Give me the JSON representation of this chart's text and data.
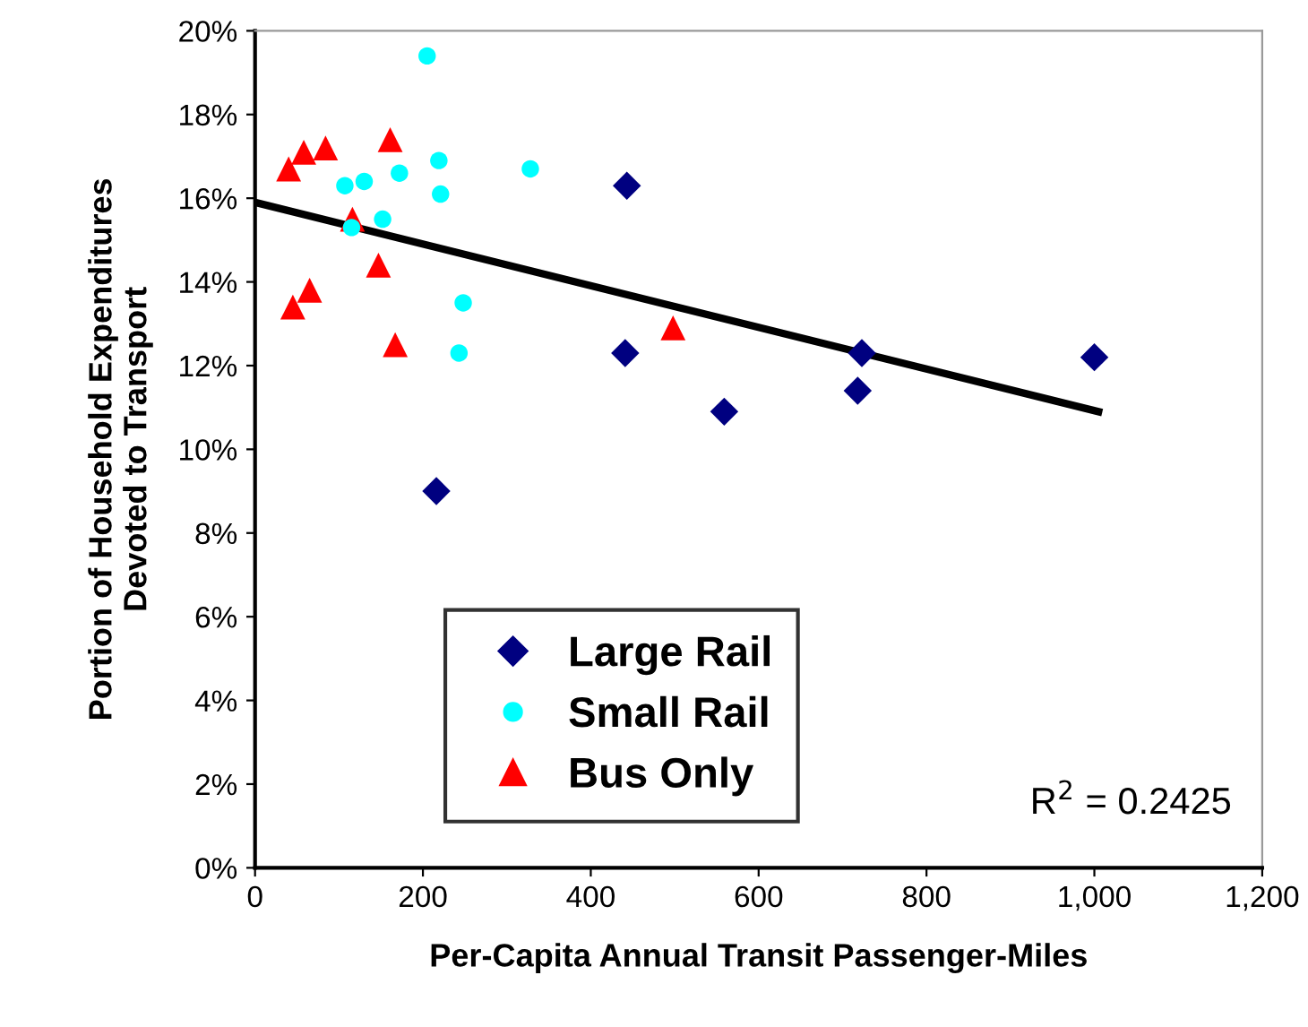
{
  "chart_data": {
    "type": "scatter",
    "xlabel": "Per-Capita Annual Transit Passenger-Miles",
    "ylabel": "Portion of Household Expenditures\nDevoted to Transport",
    "xlim": [
      0,
      1200
    ],
    "xticks": [
      0,
      200,
      400,
      600,
      800,
      {
        "value": 1000,
        "label": "1,000"
      },
      {
        "value": 1200,
        "label": "1,200"
      }
    ],
    "ylim": [
      0,
      20
    ],
    "yticks": [
      {
        "value": 0,
        "label": "0%"
      },
      {
        "value": 2,
        "label": "2%"
      },
      {
        "value": 4,
        "label": "4%"
      },
      {
        "value": 6,
        "label": "6%"
      },
      {
        "value": 8,
        "label": "8%"
      },
      {
        "value": 10,
        "label": "10%"
      },
      {
        "value": 12,
        "label": "12%"
      },
      {
        "value": 14,
        "label": "14%"
      },
      {
        "value": 16,
        "label": "16%"
      },
      {
        "value": 18,
        "label": "18%"
      },
      {
        "value": 20,
        "label": "20%"
      }
    ],
    "grid": false,
    "legend": "bottom",
    "annotations": [
      "R$^{2}$ = 0.2425"
    ],
    "series": [
      {
        "name": "Large Rail",
        "color": "#000080",
        "marker": "diamond",
        "x": [
          441,
          559,
          723,
          718,
          1000,
          216,
          443
        ],
        "values": [
          12.3,
          10.9,
          12.3,
          11.4,
          12.2,
          9.0,
          16.3
        ]
      },
      {
        "name": "Small Rail",
        "color": "#00ffff",
        "marker": "circle",
        "x": [
          205,
          219,
          328,
          172,
          130,
          107,
          221,
          152,
          115,
          248,
          243
        ],
        "values": [
          19.4,
          16.9,
          16.7,
          16.6,
          16.4,
          16.3,
          16.1,
          15.5,
          15.3,
          13.5,
          12.3
        ]
      },
      {
        "name": "Bus Only",
        "color": "#ff0000",
        "marker": "triangle",
        "x": [
          161,
          84,
          58,
          40,
          116,
          147,
          65,
          45,
          167,
          498
        ],
        "values": [
          17.4,
          17.2,
          17.1,
          16.7,
          15.5,
          14.4,
          13.8,
          13.4,
          12.5,
          12.9
        ]
      },
      {
        "type": "line",
        "color": "#000000",
        "marker": "none",
        "line_style": "solid",
        "x": [
          0,
          1005
        ],
        "values": [
          15.9,
          10.9
        ]
      }
    ]
  }
}
